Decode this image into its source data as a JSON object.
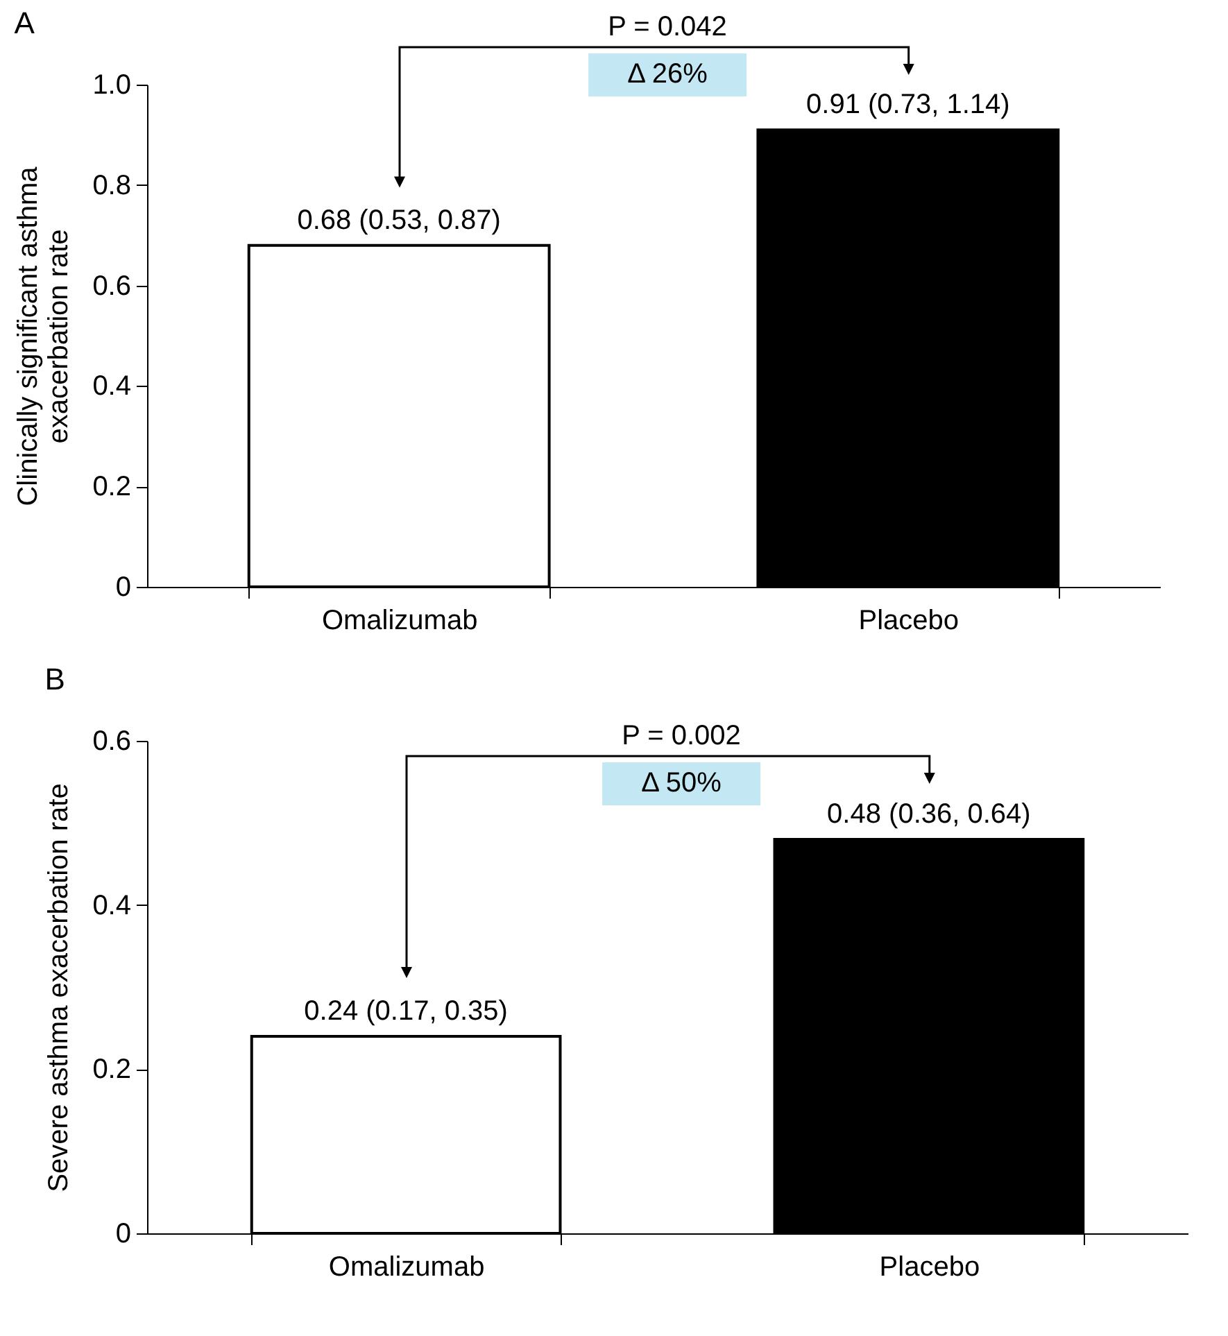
{
  "chart_data": [
    {
      "type": "bar",
      "title": "A",
      "categories": [
        "Omalizumab",
        "Placebo"
      ],
      "values": [
        0.68,
        0.91
      ],
      "colors": [
        "#ffffff",
        "#000000"
      ],
      "value_labels": [
        "0.68 (0.53, 0.87)",
        "0.91 (0.73, 1.14)"
      ],
      "ylabel": "Clinically significant asthma exacerbation rate",
      "ylim": [
        0,
        1
      ],
      "yticks": [
        0,
        0.2,
        0.4,
        0.6,
        0.8,
        {
          "value": 1,
          "label": "1.0"
        }
      ],
      "annotations": [
        "P = 0.042",
        "Δ 26%"
      ]
    },
    {
      "type": "bar",
      "title": "B",
      "categories": [
        "Omalizumab",
        "Placebo"
      ],
      "values": [
        0.24,
        0.48
      ],
      "colors": [
        "#ffffff",
        "#000000"
      ],
      "value_labels": [
        "0.24 (0.17, 0.35)",
        "0.48 (0.36, 0.64)"
      ],
      "ylabel": "Severe asthma exacerbation rate",
      "ylim": [
        0,
        0.6
      ],
      "yticks": [
        0,
        0.2,
        0.4,
        0.6
      ],
      "annotations": [
        "P = 0.002",
        "Δ 50%"
      ]
    }
  ]
}
